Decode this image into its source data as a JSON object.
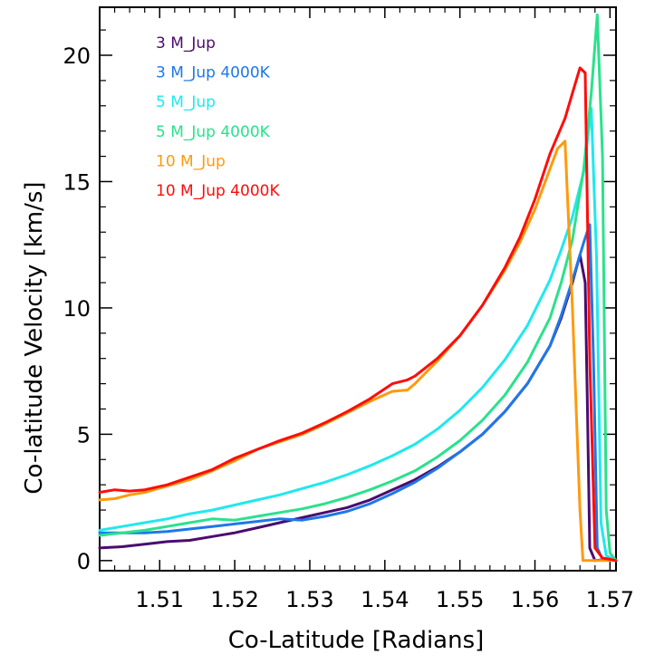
{
  "chart_data": {
    "type": "line",
    "title": "",
    "xlabel": "Co-Latitude [Radians]",
    "ylabel": "Co-latitude Velocity [km/s]",
    "xlim": [
      1.502,
      1.5708
    ],
    "ylim": [
      -0.4,
      21.9
    ],
    "xticks": [
      1.51,
      1.52,
      1.53,
      1.54,
      1.55,
      1.56,
      1.57
    ],
    "xtick_labels": [
      "1.51",
      "1.52",
      "1.53",
      "1.54",
      "1.55",
      "1.56",
      "1.57"
    ],
    "yticks": [
      0,
      5,
      10,
      15,
      20
    ],
    "ytick_labels": [
      "0",
      "5",
      "10",
      "15",
      "20"
    ],
    "grid": false,
    "legend_position": "top-left",
    "series": [
      {
        "name": "3 M_Jup",
        "color": "#4b0b70",
        "x": [
          1.502,
          1.505,
          1.508,
          1.511,
          1.514,
          1.517,
          1.52,
          1.523,
          1.526,
          1.529,
          1.532,
          1.535,
          1.538,
          1.541,
          1.544,
          1.547,
          1.55,
          1.553,
          1.556,
          1.559,
          1.562,
          1.5635,
          1.565,
          1.566,
          1.5667,
          1.567,
          1.5673,
          1.568,
          1.57,
          1.5708
        ],
        "y": [
          0.5,
          0.55,
          0.65,
          0.75,
          0.8,
          0.95,
          1.1,
          1.3,
          1.5,
          1.7,
          1.9,
          2.1,
          2.4,
          2.8,
          3.2,
          3.7,
          4.3,
          5.0,
          5.9,
          7.0,
          8.5,
          9.6,
          11.0,
          12.1,
          11.0,
          6.0,
          0.5,
          0.0,
          0.05,
          0.0
        ]
      },
      {
        "name": "3 M_Jup 4000K",
        "color": "#1e78e8",
        "x": [
          1.502,
          1.505,
          1.508,
          1.511,
          1.514,
          1.517,
          1.52,
          1.523,
          1.526,
          1.529,
          1.532,
          1.535,
          1.538,
          1.541,
          1.544,
          1.547,
          1.55,
          1.553,
          1.556,
          1.559,
          1.562,
          1.5635,
          1.565,
          1.5665,
          1.5673,
          1.5678,
          1.5683,
          1.569,
          1.57,
          1.5708
        ],
        "y": [
          1.1,
          1.1,
          1.1,
          1.15,
          1.25,
          1.35,
          1.45,
          1.55,
          1.65,
          1.6,
          1.75,
          1.95,
          2.25,
          2.65,
          3.1,
          3.65,
          4.3,
          5.0,
          5.9,
          7.0,
          8.5,
          9.7,
          11.1,
          12.6,
          13.3,
          8.0,
          0.5,
          0.05,
          0.1,
          0.0
        ]
      },
      {
        "name": "5 M_Jup",
        "color": "#20e8ee",
        "x": [
          1.502,
          1.505,
          1.508,
          1.511,
          1.514,
          1.517,
          1.52,
          1.523,
          1.526,
          1.529,
          1.532,
          1.535,
          1.538,
          1.541,
          1.544,
          1.547,
          1.55,
          1.553,
          1.556,
          1.559,
          1.562,
          1.5635,
          1.565,
          1.5665,
          1.5675,
          1.5682,
          1.5688,
          1.5695,
          1.5702,
          1.5708
        ],
        "y": [
          1.2,
          1.35,
          1.5,
          1.65,
          1.85,
          2.0,
          2.2,
          2.4,
          2.6,
          2.85,
          3.1,
          3.4,
          3.75,
          4.15,
          4.6,
          5.2,
          5.95,
          6.85,
          7.95,
          9.3,
          11.1,
          12.3,
          13.6,
          15.4,
          17.9,
          12.0,
          1.5,
          0.2,
          0.1,
          0.0
        ]
      },
      {
        "name": "5 M_Jup 4000K",
        "color": "#2ae28c",
        "x": [
          1.502,
          1.505,
          1.508,
          1.511,
          1.514,
          1.517,
          1.52,
          1.523,
          1.526,
          1.529,
          1.532,
          1.535,
          1.538,
          1.541,
          1.544,
          1.547,
          1.55,
          1.553,
          1.556,
          1.559,
          1.562,
          1.5635,
          1.565,
          1.5665,
          1.5675,
          1.5683,
          1.569,
          1.5695,
          1.57,
          1.5708
        ],
        "y": [
          1.0,
          1.1,
          1.2,
          1.35,
          1.5,
          1.65,
          1.6,
          1.75,
          1.9,
          2.05,
          2.25,
          2.5,
          2.8,
          3.15,
          3.55,
          4.1,
          4.75,
          5.55,
          6.55,
          7.85,
          9.6,
          11.0,
          12.7,
          15.5,
          18.5,
          21.6,
          16.0,
          2.0,
          0.3,
          0.0
        ]
      },
      {
        "name": "10 M_Jup",
        "color": "#ff9a0c",
        "x": [
          1.502,
          1.504,
          1.506,
          1.508,
          1.511,
          1.514,
          1.517,
          1.52,
          1.523,
          1.526,
          1.529,
          1.532,
          1.535,
          1.538,
          1.541,
          1.543,
          1.544,
          1.547,
          1.55,
          1.553,
          1.556,
          1.558,
          1.56,
          1.562,
          1.563,
          1.564,
          1.565,
          1.566,
          1.5664,
          1.5708
        ],
        "y": [
          2.4,
          2.45,
          2.6,
          2.7,
          2.95,
          3.2,
          3.55,
          3.95,
          4.4,
          4.7,
          5.0,
          5.4,
          5.85,
          6.3,
          6.7,
          6.75,
          7.0,
          7.9,
          8.9,
          10.1,
          11.5,
          12.6,
          13.9,
          15.5,
          16.3,
          16.6,
          10.0,
          2.0,
          0.0,
          0.0
        ]
      },
      {
        "name": "10 M_Jup 4000K",
        "color": "#ff0c0c",
        "x": [
          1.502,
          1.504,
          1.506,
          1.508,
          1.511,
          1.514,
          1.517,
          1.52,
          1.523,
          1.526,
          1.529,
          1.532,
          1.535,
          1.538,
          1.541,
          1.543,
          1.544,
          1.547,
          1.55,
          1.553,
          1.556,
          1.558,
          1.56,
          1.562,
          1.564,
          1.565,
          1.566,
          1.5667,
          1.5673,
          1.568,
          1.569,
          1.57,
          1.5708
        ],
        "y": [
          2.7,
          2.8,
          2.75,
          2.8,
          3.0,
          3.3,
          3.6,
          4.05,
          4.4,
          4.75,
          5.05,
          5.45,
          5.9,
          6.4,
          7.0,
          7.15,
          7.3,
          8.0,
          8.9,
          10.1,
          11.6,
          12.8,
          14.3,
          16.1,
          17.5,
          18.5,
          19.5,
          19.3,
          8.0,
          0.5,
          0.1,
          0.05,
          0.0
        ]
      }
    ]
  }
}
